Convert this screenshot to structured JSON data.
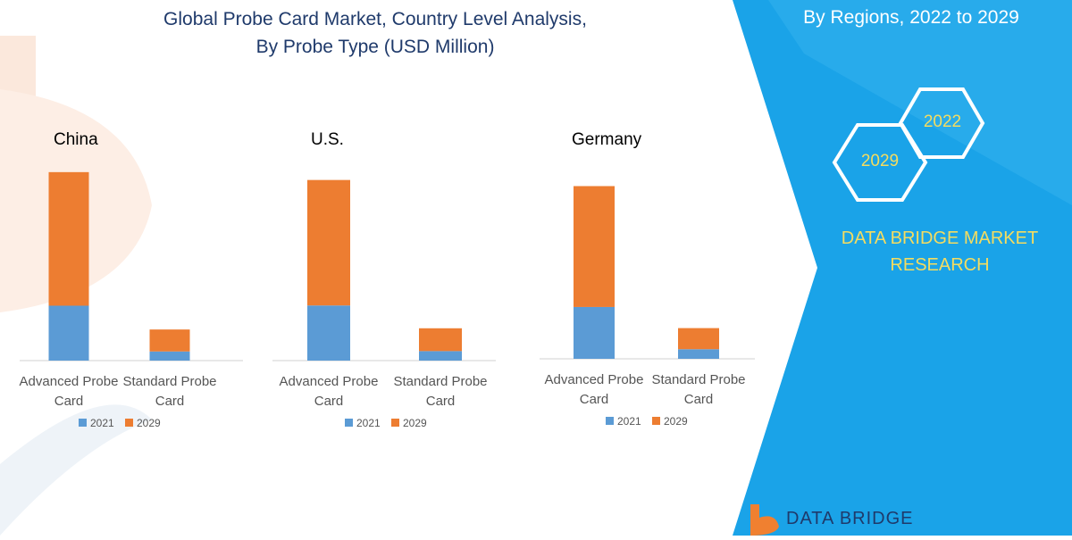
{
  "header": {
    "title_line1": "Global Probe Card Market, Country Level Analysis,",
    "title_line2": "By Probe Type (USD Million)"
  },
  "side_panel": {
    "region_title": "By Regions, 2022 to 2029",
    "hex_top": "2022",
    "hex_bottom": "2029",
    "brand_line1": "DATA BRIDGE MARKET",
    "brand_line2": "RESEARCH",
    "logo_text": "DATA BRIDGE",
    "panel_color": "#1aa3e8",
    "accent_color": "#f4dc60"
  },
  "chart_data": [
    {
      "type": "bar",
      "stacked": true,
      "title": "China",
      "categories": [
        "Advanced Probe Card",
        "Standard Probe Card"
      ],
      "series": [
        {
          "name": "2021",
          "color": "#5b9bd5",
          "values": [
            30,
            5
          ]
        },
        {
          "name": "2029",
          "color": "#ed7d31",
          "values": [
            73,
            12
          ]
        }
      ],
      "ylim": [
        0,
        110
      ],
      "legend": "bottom"
    },
    {
      "type": "bar",
      "stacked": true,
      "title": "U.S.",
      "categories": [
        "Advanced Probe Card",
        "Standard Probe Card"
      ],
      "series": [
        {
          "name": "2021",
          "color": "#5b9bd5",
          "values": [
            29,
            5
          ]
        },
        {
          "name": "2029",
          "color": "#ed7d31",
          "values": [
            66,
            12
          ]
        }
      ],
      "ylim": [
        0,
        110
      ],
      "legend": "bottom"
    },
    {
      "type": "bar",
      "stacked": true,
      "title": "Germany",
      "categories": [
        "Advanced Probe Card",
        "Standard Probe Card"
      ],
      "series": [
        {
          "name": "2021",
          "color": "#5b9bd5",
          "values": [
            27,
            5
          ]
        },
        {
          "name": "2029",
          "color": "#ed7d31",
          "values": [
            63,
            11
          ]
        }
      ],
      "ylim": [
        0,
        110
      ],
      "legend": "bottom"
    }
  ]
}
